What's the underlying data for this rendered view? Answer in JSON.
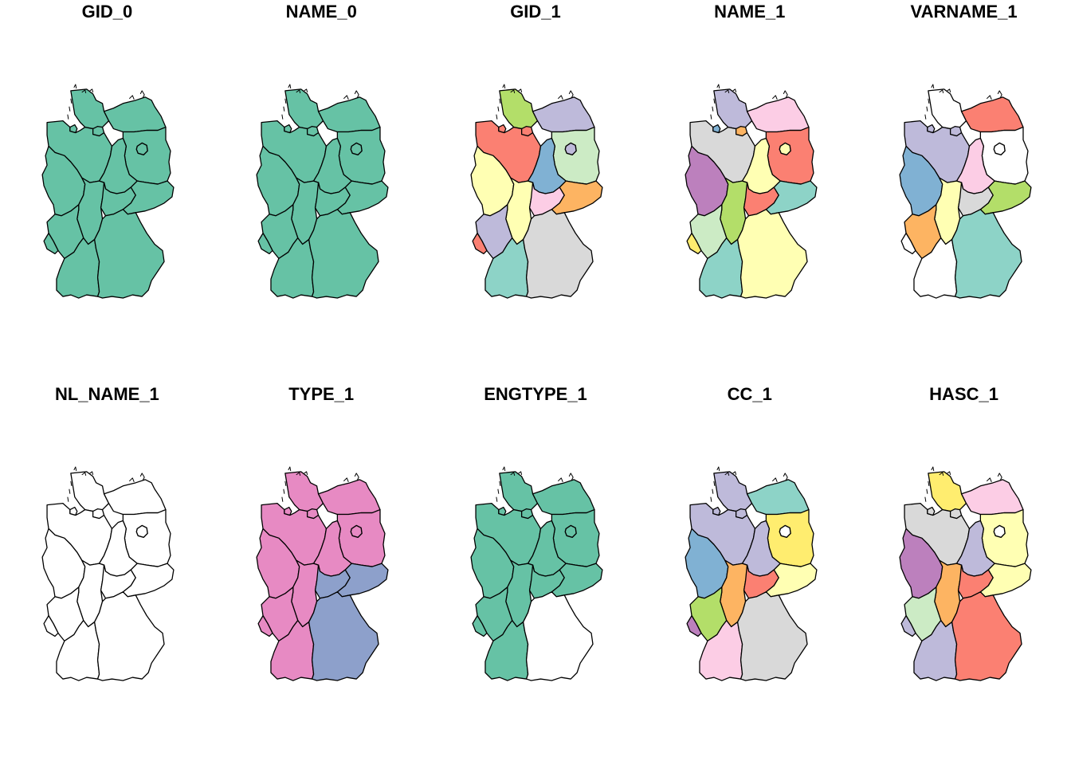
{
  "figure": {
    "panels": [
      {
        "title": "GID_0",
        "fills": {
          "SH": "#66C2A5",
          "MV": "#66C2A5",
          "HH": "#66C2A5",
          "HB": "#66C2A5",
          "NI": "#66C2A5",
          "BB": "#66C2A5",
          "BE": "#66C2A5",
          "ST": "#66C2A5",
          "NW": "#66C2A5",
          "HE": "#66C2A5",
          "TH": "#66C2A5",
          "SN": "#66C2A5",
          "RP": "#66C2A5",
          "SL": "#66C2A5",
          "BW": "#66C2A5",
          "BY": "#66C2A5"
        }
      },
      {
        "title": "NAME_0",
        "fills": {
          "SH": "#66C2A5",
          "MV": "#66C2A5",
          "HH": "#66C2A5",
          "HB": "#66C2A5",
          "NI": "#66C2A5",
          "BB": "#66C2A5",
          "BE": "#66C2A5",
          "ST": "#66C2A5",
          "NW": "#66C2A5",
          "HE": "#66C2A5",
          "TH": "#66C2A5",
          "SN": "#66C2A5",
          "RP": "#66C2A5",
          "SL": "#66C2A5",
          "BW": "#66C2A5",
          "BY": "#66C2A5"
        }
      },
      {
        "title": "GID_1",
        "fills": {
          "SH": "#B3DE69",
          "MV": "#BEBADA",
          "HH": "#FB8072",
          "HB": "#FB8072",
          "NI": "#FB8072",
          "BB": "#CCEBC5",
          "BE": "#BEBADA",
          "ST": "#80B1D3",
          "NW": "#FFFFB3",
          "HE": "#FFFFB3",
          "TH": "#FCCDE5",
          "SN": "#FDB462",
          "RP": "#BEBADA",
          "SL": "#FB8072",
          "BW": "#8DD3C7",
          "BY": "#D9D9D9"
        }
      },
      {
        "title": "NAME_1",
        "fills": {
          "SH": "#BEBADA",
          "MV": "#FCCDE5",
          "HH": "#FDB462",
          "HB": "#80B1D3",
          "NI": "#D9D9D9",
          "BB": "#FB8072",
          "BE": "#FFFFB3",
          "ST": "#FFFFB3",
          "NW": "#BC80BD",
          "HE": "#B3DE69",
          "TH": "#FB8072",
          "SN": "#8DD3C7",
          "RP": "#CCEBC5",
          "SL": "#FFED6F",
          "BW": "#8DD3C7",
          "BY": "#FFFFB3"
        }
      },
      {
        "title": "VARNAME_1",
        "fills": {
          "SH": "#FFFFFF",
          "MV": "#FB8072",
          "HH": "#BEBADA",
          "HB": "#BEBADA",
          "NI": "#BEBADA",
          "BB": "#FFFFFF",
          "BE": "#FFFFFF",
          "ST": "#FCCDE5",
          "NW": "#80B1D3",
          "HE": "#FFFFB3",
          "TH": "#D9D9D9",
          "SN": "#B3DE69",
          "RP": "#FDB462",
          "SL": "#FFFFFF",
          "BW": "#FFFFFF",
          "BY": "#8DD3C7"
        }
      },
      {
        "title": "NL_NAME_1",
        "fills": {
          "SH": "#FFFFFF",
          "MV": "#FFFFFF",
          "HH": "#FFFFFF",
          "HB": "#FFFFFF",
          "NI": "#FFFFFF",
          "BB": "#FFFFFF",
          "BE": "#FFFFFF",
          "ST": "#FFFFFF",
          "NW": "#FFFFFF",
          "HE": "#FFFFFF",
          "TH": "#FFFFFF",
          "SN": "#FFFFFF",
          "RP": "#FFFFFF",
          "SL": "#FFFFFF",
          "BW": "#FFFFFF",
          "BY": "#FFFFFF"
        }
      },
      {
        "title": "TYPE_1",
        "fills": {
          "SH": "#E78AC3",
          "MV": "#E78AC3",
          "HH": "#E78AC3",
          "HB": "#E78AC3",
          "NI": "#E78AC3",
          "BB": "#E78AC3",
          "BE": "#E78AC3",
          "ST": "#E78AC3",
          "NW": "#E78AC3",
          "HE": "#E78AC3",
          "TH": "#8DA0CB",
          "SN": "#8DA0CB",
          "RP": "#E78AC3",
          "SL": "#E78AC3",
          "BW": "#E78AC3",
          "BY": "#8DA0CB"
        }
      },
      {
        "title": "ENGTYPE_1",
        "fills": {
          "SH": "#66C2A5",
          "MV": "#66C2A5",
          "HH": "#66C2A5",
          "HB": "#66C2A5",
          "NI": "#66C2A5",
          "BB": "#66C2A5",
          "BE": "#66C2A5",
          "ST": "#66C2A5",
          "NW": "#66C2A5",
          "HE": "#66C2A5",
          "TH": "#66C2A5",
          "SN": "#66C2A5",
          "RP": "#66C2A5",
          "SL": "#66C2A5",
          "BW": "#66C2A5",
          "BY": "#FFFFFF"
        }
      },
      {
        "title": "CC_1",
        "fills": {
          "SH": "#BEBADA",
          "MV": "#8DD3C7",
          "HH": "#BEBADA",
          "HB": "#BEBADA",
          "NI": "#BEBADA",
          "BB": "#FFED6F",
          "BE": "#FFFFFF",
          "ST": "#BEBADA",
          "NW": "#80B1D3",
          "HE": "#FDB462",
          "TH": "#FB8072",
          "SN": "#FFFFB3",
          "RP": "#B3DE69",
          "SL": "#BC80BD",
          "BW": "#FCCDE5",
          "BY": "#D9D9D9"
        }
      },
      {
        "title": "HASC_1",
        "fills": {
          "SH": "#FFED6F",
          "MV": "#FCCDE5",
          "HH": "#D9D9D9",
          "HB": "#D9D9D9",
          "NI": "#D9D9D9",
          "BB": "#FFFFB3",
          "BE": "#FFFFFF",
          "ST": "#BEBADA",
          "NW": "#BC80BD",
          "HE": "#FDB462",
          "TH": "#FB8072",
          "SN": "#FFFFB3",
          "RP": "#CCEBC5",
          "SL": "#BEBADA",
          "BW": "#BEBADA",
          "BY": "#FB8072"
        }
      }
    ]
  }
}
